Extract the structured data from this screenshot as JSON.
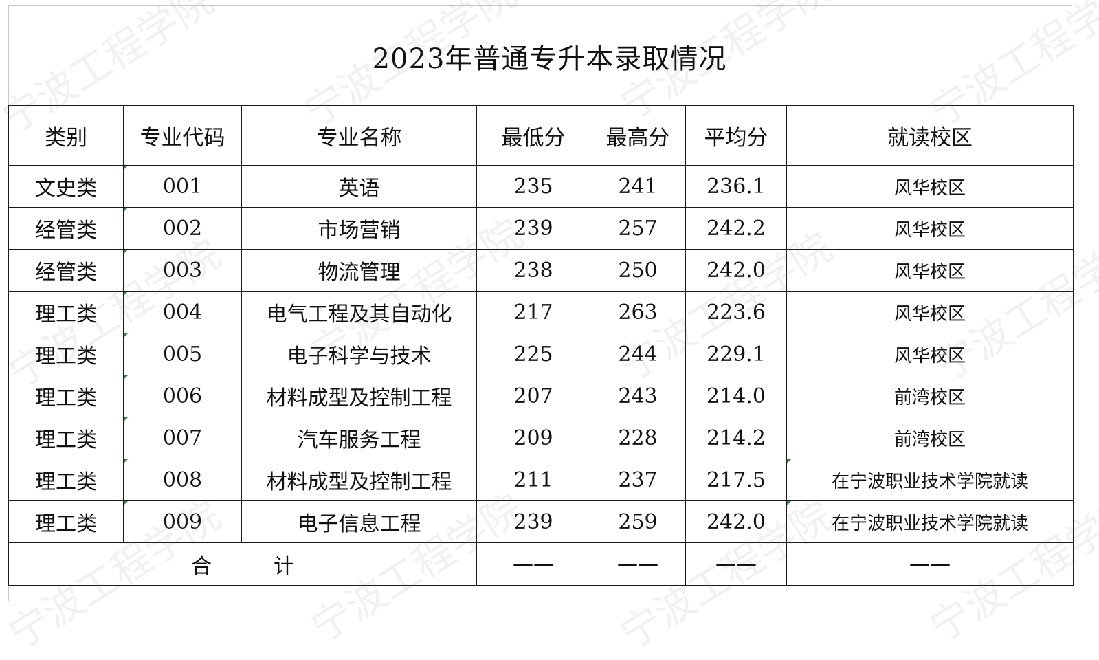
{
  "title": "2023年普通专升本录取情况",
  "watermark": "宁波工程学院",
  "columns": [
    "类别",
    "专业代码",
    "专业名称",
    "最低分",
    "最高分",
    "平均分",
    "就读校区"
  ],
  "rows": [
    {
      "category": "文史类",
      "code": "001",
      "major": "英语",
      "min": "235",
      "max": "241",
      "avg": "236.1",
      "campus": "风华校区"
    },
    {
      "category": "经管类",
      "code": "002",
      "major": "市场营销",
      "min": "239",
      "max": "257",
      "avg": "242.2",
      "campus": "风华校区"
    },
    {
      "category": "经管类",
      "code": "003",
      "major": "物流管理",
      "min": "238",
      "max": "250",
      "avg": "242.0",
      "campus": "风华校区"
    },
    {
      "category": "理工类",
      "code": "004",
      "major": "电气工程及其自动化",
      "min": "217",
      "max": "263",
      "avg": "223.6",
      "campus": "风华校区"
    },
    {
      "category": "理工类",
      "code": "005",
      "major": "电子科学与技术",
      "min": "225",
      "max": "244",
      "avg": "229.1",
      "campus": "风华校区"
    },
    {
      "category": "理工类",
      "code": "006",
      "major": "材料成型及控制工程",
      "min": "207",
      "max": "243",
      "avg": "214.0",
      "campus": "前湾校区"
    },
    {
      "category": "理工类",
      "code": "007",
      "major": "汽车服务工程",
      "min": "209",
      "max": "228",
      "avg": "214.2",
      "campus": "前湾校区"
    },
    {
      "category": "理工类",
      "code": "008",
      "major": "材料成型及控制工程",
      "min": "211",
      "max": "237",
      "avg": "217.5",
      "campus": "在宁波职业技术学院就读"
    },
    {
      "category": "理工类",
      "code": "009",
      "major": "电子信息工程",
      "min": "239",
      "max": "259",
      "avg": "242.0",
      "campus": "在宁波职业技术学院就读"
    }
  ],
  "total": {
    "label": "合　　　计",
    "min": "——",
    "max": "——",
    "avg": "——",
    "campus": "——"
  },
  "colors": {
    "border": "#1a1a1a",
    "cell_marker": "#2e8b3a",
    "watermark": "rgba(120,120,120,0.10)"
  }
}
